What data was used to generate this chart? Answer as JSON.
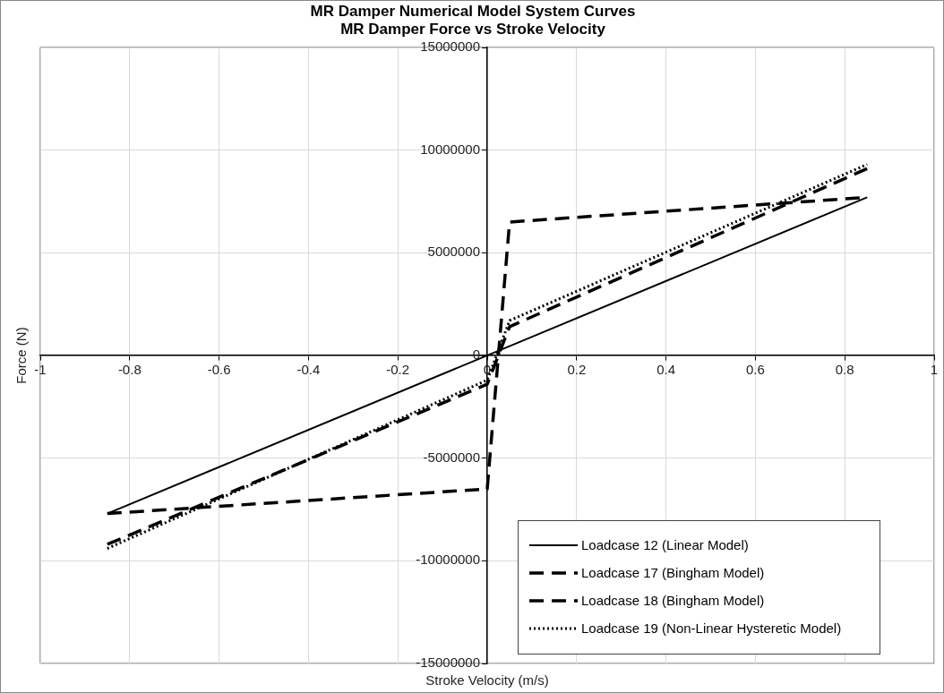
{
  "chart_data": {
    "type": "line",
    "title": "MR Damper Numerical Model System Curves",
    "subtitle": "MR Damper Force vs Stroke Velocity",
    "xlabel": "Stroke Velocity (m/s)",
    "ylabel": "Force (N)",
    "xlim": [
      -1,
      1
    ],
    "xticks": [
      -1,
      -0.8,
      -0.6,
      -0.4,
      -0.2,
      0,
      0.2,
      0.4,
      0.6,
      0.8,
      1
    ],
    "ylim": [
      -15000000,
      15000000
    ],
    "yticks": [
      -15000000,
      -10000000,
      -5000000,
      0,
      5000000,
      10000000,
      15000000
    ],
    "grid": true,
    "legend": "bottom right",
    "marker": "none",
    "series": [
      {
        "name": "Loadcase 12 (Linear Model)",
        "color": "#000000",
        "line_style": "solid",
        "x": [
          -0.85,
          0.85
        ],
        "values": [
          -7700000,
          7700000
        ]
      },
      {
        "name": "Loadcase 17 (Bingham Model)",
        "color": "#000000",
        "line_style": "dashed",
        "x": [
          -0.85,
          0,
          0.05,
          0.85
        ],
        "values": [
          -7700000,
          -6500000,
          6500000,
          7700000
        ]
      },
      {
        "name": "Loadcase 18 (Bingham Model)",
        "color": "#000000",
        "line_style": "dashed",
        "x": [
          -0.85,
          0,
          0.05,
          0.85
        ],
        "values": [
          -9200000,
          -1400000,
          1400000,
          9100000
        ]
      },
      {
        "name": "Loadcase 19 (Non-Linear Hysteretic Model)",
        "color": "#000000",
        "line_style": "dotted",
        "x": [
          -0.85,
          0,
          0.05,
          0.85
        ],
        "values": [
          -9400000,
          -1200000,
          1700000,
          9300000
        ]
      }
    ]
  }
}
